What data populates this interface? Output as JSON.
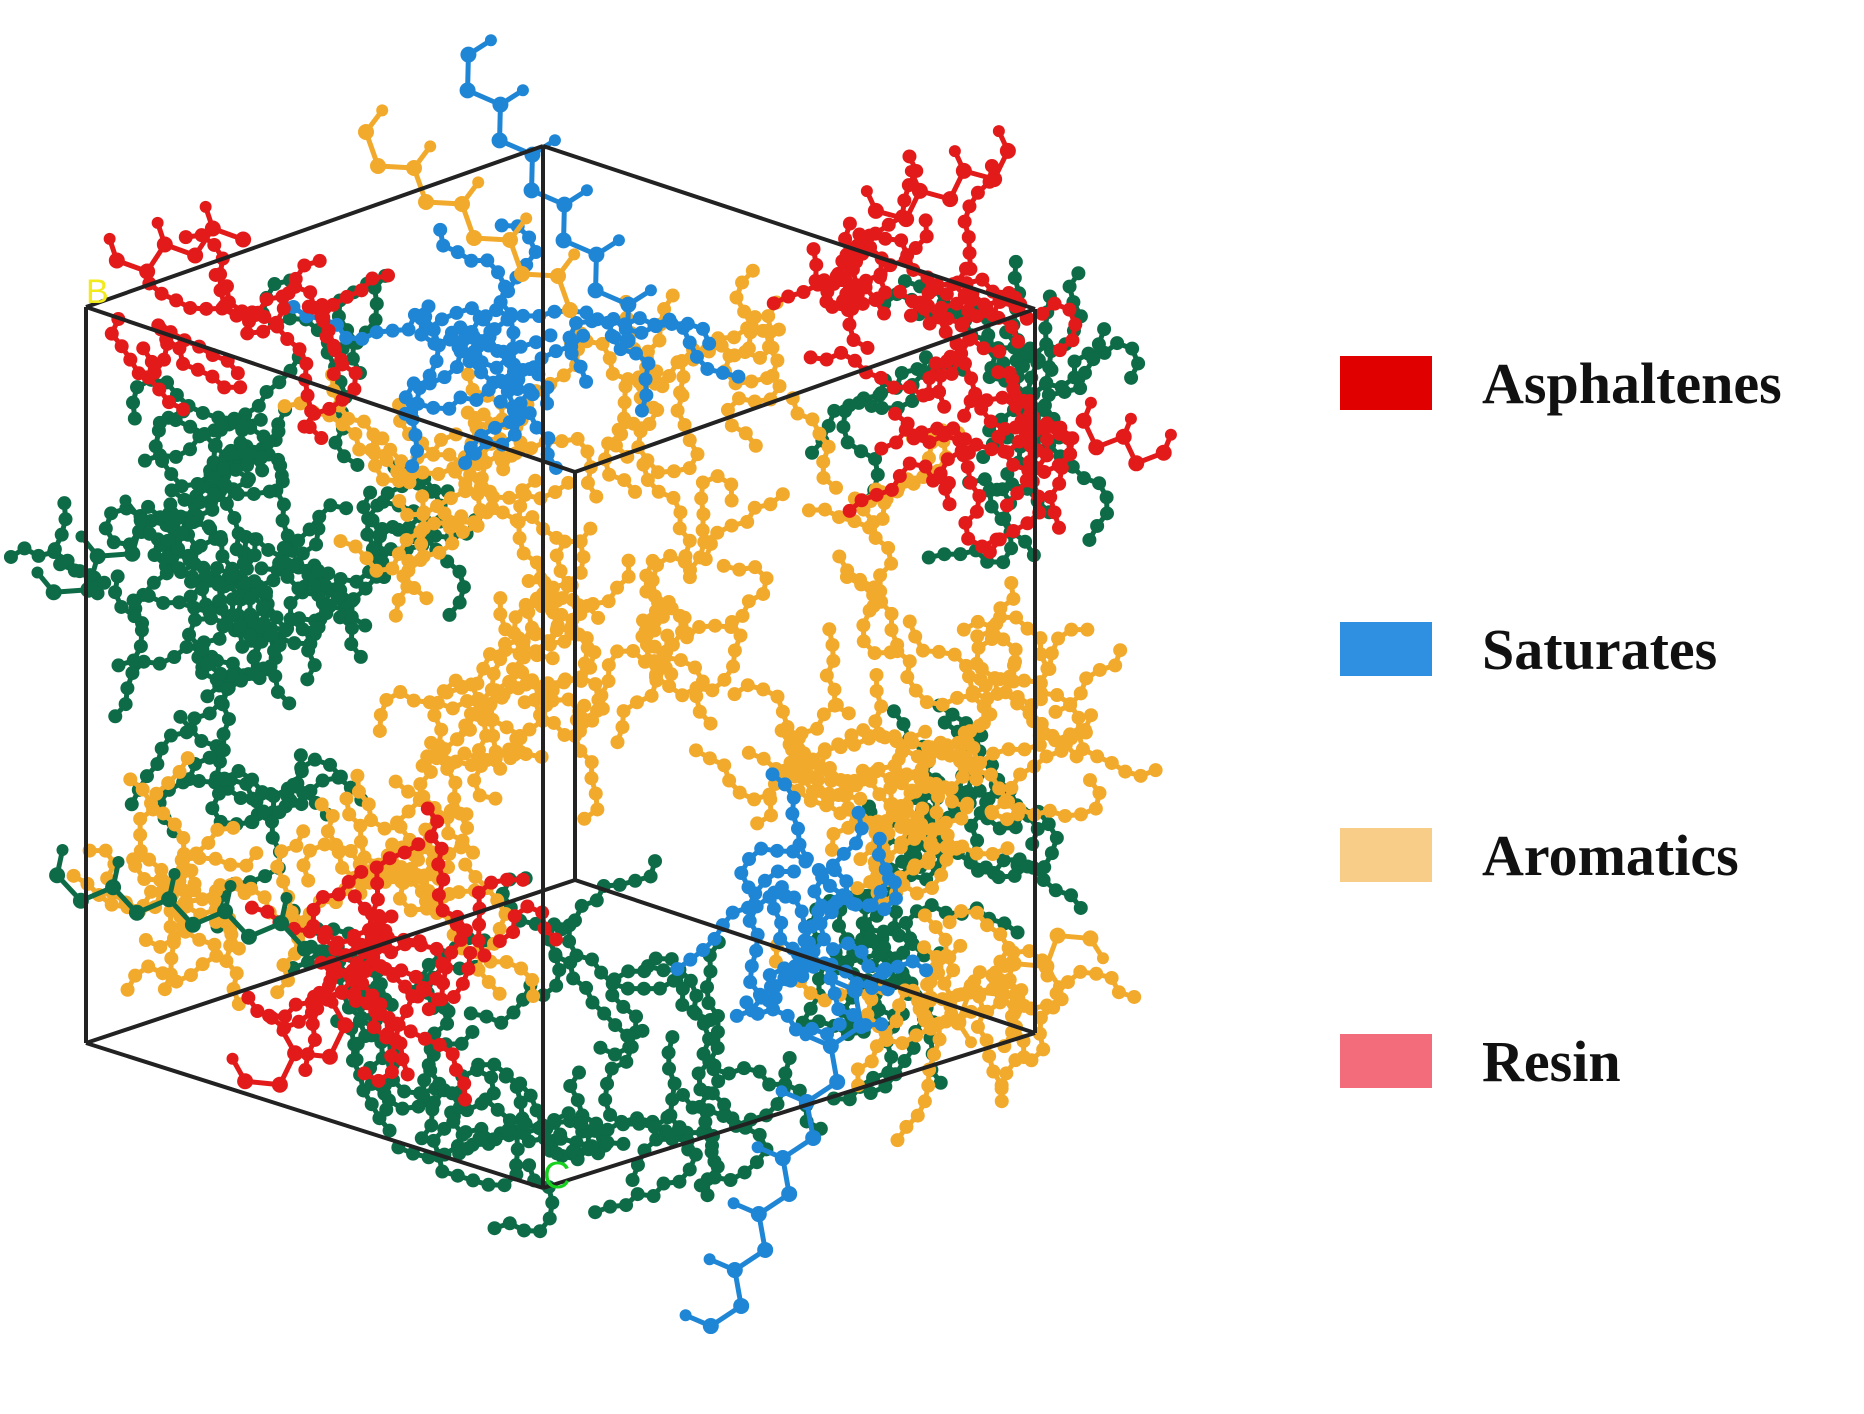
{
  "figure": {
    "box_labels": {
      "top_left": "B",
      "bottom_front": "C"
    },
    "box_label_colors": {
      "top_left": "#f2ea1c",
      "bottom_front": "#17d11f"
    },
    "box_color": "#222222"
  },
  "legend": {
    "items": [
      {
        "label": "Asphaltenes",
        "color": "#e00000"
      },
      {
        "label": "Saturates",
        "color": "#2f8fe0"
      },
      {
        "label": "Aromatics",
        "color": "#f7cd87"
      },
      {
        "label": "Resin",
        "color": "#f26c7c"
      }
    ]
  },
  "molecule_colors": {
    "asphaltenes": "#e31a1a",
    "saturates": "#1f86d6",
    "aromatics": "#f2aa2c",
    "resin": "#0d6b47"
  }
}
